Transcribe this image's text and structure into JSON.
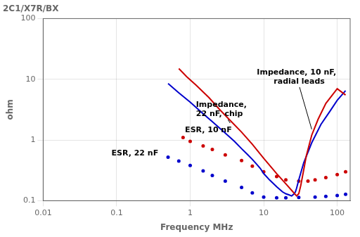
{
  "chart_data": {
    "type": "line",
    "title": "2C1/X7R/BX",
    "x_label": "Frequency MHz",
    "y_label": "ohm",
    "log": true,
    "xlim": [
      0.01,
      150
    ],
    "ylim": [
      0.1,
      100
    ],
    "xticks": [
      0.01,
      0.1,
      1,
      10,
      100
    ],
    "yticks": [
      0.1,
      1,
      10,
      100
    ],
    "grid": true,
    "series": [
      {
        "type": "line",
        "color": "#cc0000",
        "line_style": "solid",
        "marker": "none",
        "x": [
          0.7,
          0.9,
          1.2,
          1.8,
          2.5,
          3.5,
          5.0,
          7.0,
          10.0,
          15.0,
          20.0,
          25.0,
          28.0,
          30.0,
          32.0,
          33.0,
          35.0,
          38.0,
          45.0,
          55.0,
          70.0,
          100.0,
          130.0
        ],
        "values": [
          15.0,
          11.0,
          8.0,
          5.0,
          3.2,
          2.1,
          1.35,
          0.85,
          0.5,
          0.28,
          0.19,
          0.14,
          0.12,
          0.13,
          0.18,
          0.22,
          0.32,
          0.55,
          1.2,
          2.2,
          4.0,
          7.0,
          5.5
        ]
      },
      {
        "type": "line",
        "color": "#0000cc",
        "line_style": "solid",
        "marker": "none",
        "x": [
          0.5,
          0.7,
          1.0,
          1.5,
          2.0,
          3.0,
          4.0,
          5.0,
          6.0,
          7.0,
          8.0,
          9.0,
          10.0,
          12.0,
          15.0,
          18.0,
          20.0,
          22.0,
          24.0,
          26.0,
          27.0,
          28.0,
          30.0,
          35.0,
          45.0,
          60.0,
          80.0,
          100.0,
          130.0
        ],
        "values": [
          8.5,
          6.0,
          4.2,
          2.7,
          2.0,
          1.3,
          0.95,
          0.72,
          0.58,
          0.48,
          0.4,
          0.34,
          0.28,
          0.22,
          0.17,
          0.14,
          0.13,
          0.125,
          0.12,
          0.13,
          0.14,
          0.16,
          0.22,
          0.42,
          0.9,
          1.8,
          3.0,
          4.5,
          6.5
        ]
      },
      {
        "type": "scatter",
        "color": "#cc0000",
        "marker": "dot",
        "x": [
          0.8,
          1.0,
          1.5,
          2.0,
          3.0,
          5.0,
          7.0,
          10.0,
          15.0,
          20.0,
          30.0,
          40.0,
          50.0,
          70.0,
          100.0,
          130.0
        ],
        "values": [
          1.1,
          0.95,
          0.8,
          0.7,
          0.57,
          0.46,
          0.37,
          0.3,
          0.25,
          0.22,
          0.21,
          0.21,
          0.22,
          0.24,
          0.27,
          0.3
        ]
      },
      {
        "type": "scatter",
        "color": "#0000cc",
        "marker": "dot",
        "x": [
          0.5,
          0.7,
          1.0,
          1.5,
          2.0,
          3.0,
          5.0,
          7.0,
          10.0,
          15.0,
          20.0,
          30.0,
          50.0,
          70.0,
          100.0,
          130.0
        ],
        "values": [
          0.52,
          0.45,
          0.38,
          0.31,
          0.26,
          0.21,
          0.165,
          0.135,
          0.115,
          0.112,
          0.112,
          0.113,
          0.115,
          0.118,
          0.122,
          0.128
        ]
      }
    ],
    "annotations": [
      {
        "text": "Impedance, 10 nF,\n  radial leads",
        "x": 28,
        "y": 12,
        "arrow_to": [
          45,
          1.5
        ]
      },
      {
        "text": "Impedance,\n22 nF, chip",
        "x": 1.2,
        "y": 3.5,
        "arrow_to": [
          3.5,
          1.9
        ]
      },
      {
        "text": "ESR, 10 nF",
        "x": 0.85,
        "y": 1.25
      },
      {
        "text": "ESR, 22 nF",
        "x": 0.085,
        "y": 0.52
      }
    ]
  }
}
